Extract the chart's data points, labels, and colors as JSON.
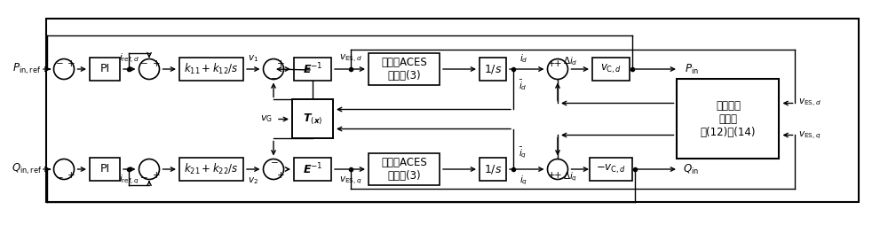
{
  "fig_width": 10.0,
  "fig_height": 2.63,
  "dpi": 100,
  "bg_color": "#ffffff",
  "line_color": "#000000",
  "labels": {
    "P_in_ref": "$P_{\\mathrm{in,ref}}$",
    "Q_in_ref": "$Q_{\\mathrm{in,ref}}$",
    "PI_top": "PI",
    "PI_bot": "PI",
    "k11": "$k_{11}+k_{12}/s$",
    "k21": "$k_{21}+k_{22}/s$",
    "E_inv_top": "$\\boldsymbol{E}^{-1}$",
    "E_inv_bot": "$\\boldsymbol{E}^{-1}$",
    "T_x": "$\\boldsymbol{T}_{(\\boldsymbol{x})}$",
    "ACES_top": "非线性ACES\n模型式(3)",
    "ACES_bot": "非线性ACES\n模型式(3)",
    "int_top": "$1/s$",
    "int_bot": "$1/s$",
    "vCd": "$v_{\\mathrm{C},d}$",
    "neg_vCd": "$-v_{\\mathrm{C},d}$",
    "robust": "鲁棒扰动\n观测器\n式(12)、(14)",
    "P_in": "$P_{\\mathrm{in}}$",
    "Q_in": "$Q_{\\mathrm{in}}$",
    "i_ref_d": "$i_{\\mathrm{ref},d}$",
    "i_ref_q": "$i_{\\mathrm{ref},q}$",
    "v1": "$v_1$",
    "v2": "$v_2$",
    "vES_d_mid": "$v_{\\mathrm{ES},d}$",
    "vES_q_mid": "$v_{\\mathrm{ES},q}$",
    "vES_d_right": "$v_{\\mathrm{ES},d}$",
    "vES_q_right": "$v_{\\mathrm{ES},q}$",
    "vG": "$v_{\\mathrm{G}}$",
    "i_d": "$i_d$",
    "i_q": "$i_q$",
    "delta_id": "$\\Delta i_d$",
    "delta_iq": "$\\Delta i_q$",
    "bar_id": "$\\bar{i}_d$",
    "bar_iq": "$\\bar{i}_q$"
  }
}
